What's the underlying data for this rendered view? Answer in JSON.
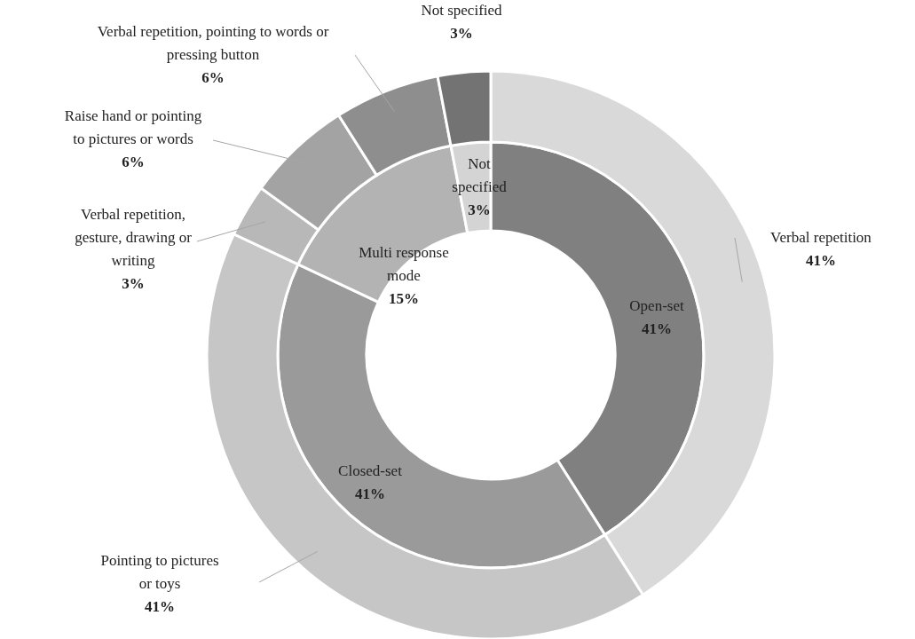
{
  "chart_data": [
    {
      "type": "donut",
      "categories": [
        "Open-set",
        "Closed-set",
        "Multi response mode",
        "Not specified"
      ],
      "values": [
        41,
        41,
        15,
        3
      ],
      "value_labels": [
        "41%",
        "41%",
        "15%",
        "3%"
      ],
      "colors": [
        "#808080",
        "#9a9a9a",
        "#b3b3b3",
        "#d4d4d4"
      ]
    },
    {
      "type": "donut",
      "categories": [
        "Verbal repetition",
        "Pointing to pictures or toys",
        "Verbal repetition, gesture, drawing or writing",
        "Raise hand or pointing to pictures or words",
        "Verbal repetition, pointing to words or pressing button",
        "Not specified"
      ],
      "values": [
        41,
        41,
        3,
        6,
        6,
        3
      ],
      "value_labels": [
        "41%",
        "41%",
        "3%",
        "6%",
        "6%",
        "3%"
      ],
      "colors": [
        "#d9d9d9",
        "#c6c6c6",
        "#b8b8b8",
        "#a3a3a3",
        "#8e8e8e",
        "#737373"
      ]
    }
  ]
}
